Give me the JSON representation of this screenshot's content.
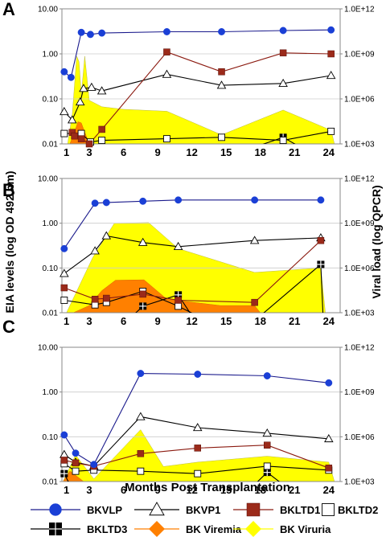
{
  "chart_data": [
    {
      "panel_label": "A",
      "type": "line",
      "x_tick_labels": [
        "1",
        "3",
        "6",
        "9",
        "12",
        "15",
        "18",
        "21",
        "24"
      ],
      "x_tick_values": [
        1,
        3,
        6,
        9,
        12,
        15,
        18,
        21,
        24
      ],
      "y_left": {
        "scale": "log",
        "range": [
          0.01,
          10
        ],
        "ticks": [
          "0.01",
          "0.10",
          "1.00",
          "10.00"
        ]
      },
      "y_right": {
        "scale": "log",
        "range": [
          1000,
          1000000000000
        ],
        "ticks": [
          "1.0E+03",
          "1.0E+06",
          "1.0E+09",
          "1.0E+12"
        ]
      },
      "grid": true,
      "series": [
        {
          "name": "BKVLP",
          "type": "line",
          "points": [
            [
              0.8,
              0.4
            ],
            [
              1.4,
              0.3
            ],
            [
              2.3,
              3.0
            ],
            [
              3.1,
              2.7
            ],
            [
              4.1,
              2.9
            ],
            [
              9.8,
              3.1
            ],
            [
              14.6,
              3.1
            ],
            [
              20.0,
              3.3
            ],
            [
              24.2,
              3.4
            ]
          ]
        },
        {
          "name": "BKVP1",
          "type": "line",
          "points": [
            [
              0.8,
              0.052
            ],
            [
              1.5,
              0.034
            ],
            [
              2.2,
              0.085
            ],
            [
              2.5,
              0.17
            ],
            [
              3.2,
              0.18
            ],
            [
              4.1,
              0.15
            ],
            [
              9.8,
              0.35
            ],
            [
              14.6,
              0.2
            ],
            [
              20.0,
              0.22
            ],
            [
              24.2,
              0.33
            ]
          ]
        },
        {
          "name": "BKLTD1",
          "type": "line",
          "points": [
            [
              1.5,
              0.018
            ],
            [
              1.7,
              0.015
            ],
            [
              2.3,
              0.013
            ],
            [
              3.0,
              0.01
            ],
            [
              4.1,
              0.021
            ],
            [
              9.8,
              1.1
            ],
            [
              14.6,
              0.4
            ],
            [
              20.0,
              1.05
            ],
            [
              24.2,
              1.0
            ]
          ]
        },
        {
          "name": "BKLTD2",
          "type": "line",
          "points": [
            [
              0.8,
              0.017
            ],
            [
              2.3,
              0.017
            ],
            [
              3.1,
              0.011
            ],
            [
              4.1,
              0.012
            ],
            [
              9.8,
              0.013
            ],
            [
              14.6,
              0.014
            ],
            [
              20.0,
              0.012
            ],
            [
              24.2,
              0.019
            ]
          ]
        },
        {
          "name": "BKLTD3",
          "type": "line",
          "points": [
            [
              17.5,
              0.0085
            ],
            [
              20.0,
              0.014
            ],
            [
              21.5,
              0.0085
            ]
          ]
        },
        {
          "name": "BK Viremia",
          "type": "area",
          "axis": "right",
          "points": [
            [
              1.3,
              1000
            ],
            [
              1.8,
              10000
            ],
            [
              2.0,
              30000
            ],
            [
              2.3,
              25000
            ],
            [
              2.6,
              6000
            ],
            [
              3.0,
              1000
            ]
          ]
        },
        {
          "name": "BK Viruria",
          "type": "area",
          "axis": "right",
          "points": [
            [
              1.1,
              1000
            ],
            [
              1.5,
              80000
            ],
            [
              1.9,
              700000000
            ],
            [
              2.1,
              300000000
            ],
            [
              2.3,
              2000000
            ],
            [
              2.6,
              700000000
            ],
            [
              3.0,
              800000
            ],
            [
              4.1,
              300000
            ],
            [
              6.0,
              200000
            ],
            [
              9.8,
              150000
            ],
            [
              14.6,
              4000
            ],
            [
              20.0,
              180000
            ],
            [
              24.2,
              8000
            ],
            [
              24.5,
              1000
            ]
          ]
        }
      ]
    },
    {
      "panel_label": "B",
      "type": "line",
      "x_tick_labels": [
        "1",
        "3",
        "6",
        "9",
        "12",
        "15",
        "18",
        "21",
        "24"
      ],
      "x_tick_values": [
        1,
        3,
        6,
        9,
        12,
        15,
        18,
        21,
        24
      ],
      "y_left": {
        "scale": "log",
        "range": [
          0.01,
          10
        ],
        "ticks": [
          "0.01",
          "0.10",
          "1.00",
          "10.00"
        ]
      },
      "y_right": {
        "scale": "log",
        "range": [
          1000,
          1000000000000
        ],
        "ticks": [
          "1.0E+03",
          "1.0E+06",
          "1.0E+09",
          "1.0E+12"
        ]
      },
      "grid": true,
      "series": [
        {
          "name": "BKVLP",
          "type": "line",
          "points": [
            [
              0.8,
              0.27
            ],
            [
              3.5,
              2.8
            ],
            [
              4.5,
              2.9
            ],
            [
              7.7,
              3.1
            ],
            [
              10.8,
              3.3
            ],
            [
              17.5,
              3.3
            ],
            [
              23.3,
              3.3
            ]
          ]
        },
        {
          "name": "BKVP1",
          "type": "line",
          "points": [
            [
              0.8,
              0.075
            ],
            [
              3.5,
              0.24
            ],
            [
              4.5,
              0.52
            ],
            [
              7.7,
              0.37
            ],
            [
              10.8,
              0.3
            ],
            [
              17.5,
              0.41
            ],
            [
              23.3,
              0.47
            ]
          ]
        },
        {
          "name": "BKLTD1",
          "type": "line",
          "points": [
            [
              0.8,
              0.036
            ],
            [
              3.5,
              0.02
            ],
            [
              4.5,
              0.021
            ],
            [
              7.7,
              0.026
            ],
            [
              10.8,
              0.019
            ],
            [
              17.5,
              0.017
            ],
            [
              23.3,
              0.41
            ]
          ]
        },
        {
          "name": "BKLTD2",
          "type": "line",
          "points": [
            [
              0.8,
              0.019
            ],
            [
              3.5,
              0.015
            ],
            [
              4.5,
              0.017
            ],
            [
              7.7,
              0.03
            ],
            [
              10.8,
              0.014
            ],
            [
              12.5,
              0.0085
            ]
          ]
        },
        {
          "name": "BKLTD3",
          "type": "line",
          "points": [
            [
              6.8,
              0.0085
            ],
            [
              7.7,
              0.014
            ],
            [
              10.8,
              0.025
            ],
            [
              12.0,
              0.0085
            ],
            [
              18.0,
              0.0085
            ],
            [
              23.3,
              0.12
            ],
            [
              23.5,
              0.0085
            ]
          ]
        },
        {
          "name": "BK Viremia",
          "type": "area",
          "axis": "right",
          "points": [
            [
              1.6,
              1000
            ],
            [
              3.0,
              3000
            ],
            [
              4.1,
              30000
            ],
            [
              5.3,
              150000
            ],
            [
              7.8,
              160000
            ],
            [
              9.8,
              8000
            ],
            [
              14.5,
              3000
            ],
            [
              17.5,
              3000
            ],
            [
              18.0,
              1000
            ]
          ]
        },
        {
          "name": "BK Viruria",
          "type": "area",
          "axis": "right",
          "points": [
            [
              1.0,
              1000
            ],
            [
              3.3,
              5000000
            ],
            [
              5.2,
              1000000000
            ],
            [
              8.2,
              1100000000
            ],
            [
              10.8,
              20000000
            ],
            [
              17.5,
              500000
            ],
            [
              23.3,
              1000000
            ],
            [
              23.7,
              1000
            ]
          ]
        }
      ]
    },
    {
      "panel_label": "C",
      "type": "line",
      "x_tick_labels": [
        "1",
        "3",
        "6",
        "9",
        "12",
        "15",
        "18",
        "21",
        "24"
      ],
      "x_tick_values": [
        1,
        3,
        6,
        9,
        12,
        15,
        18,
        21,
        24
      ],
      "y_left": {
        "scale": "log",
        "range": [
          0.01,
          10
        ],
        "ticks": [
          "0.01",
          "0.10",
          "1.00",
          "10.00"
        ]
      },
      "y_right": {
        "scale": "log",
        "range": [
          1000,
          1000000000000
        ],
        "ticks": [
          "1.0E+03",
          "1.0E+06",
          "1.0E+09",
          "1.0E+12"
        ]
      },
      "grid": true,
      "series": [
        {
          "name": "BKVLP",
          "type": "line",
          "points": [
            [
              0.8,
              0.11
            ],
            [
              1.8,
              0.043
            ],
            [
              3.4,
              0.024
            ],
            [
              7.5,
              2.6
            ],
            [
              12.5,
              2.5
            ],
            [
              18.6,
              2.3
            ],
            [
              24.0,
              1.6
            ]
          ]
        },
        {
          "name": "BKVP1",
          "type": "line",
          "points": [
            [
              0.8,
              0.04
            ],
            [
              1.8,
              0.027
            ],
            [
              3.4,
              0.022
            ],
            [
              7.5,
              0.28
            ],
            [
              12.5,
              0.16
            ],
            [
              18.6,
              0.12
            ],
            [
              24.0,
              0.09
            ]
          ]
        },
        {
          "name": "BKLTD1",
          "type": "line",
          "points": [
            [
              0.8,
              0.03
            ],
            [
              1.8,
              0.026
            ],
            [
              3.4,
              0.022
            ],
            [
              7.5,
              0.042
            ],
            [
              12.5,
              0.056
            ],
            [
              18.6,
              0.065
            ],
            [
              24.0,
              0.02
            ]
          ]
        },
        {
          "name": "BKLTD2",
          "type": "line",
          "points": [
            [
              0.8,
              0.025
            ],
            [
              1.8,
              0.017
            ],
            [
              3.4,
              0.018
            ],
            [
              7.5,
              0.017
            ],
            [
              12.5,
              0.015
            ],
            [
              18.6,
              0.022
            ],
            [
              24.0,
              0.018
            ]
          ]
        },
        {
          "name": "BKLTD3",
          "type": "line",
          "points": [
            [
              0.8,
              0.015
            ],
            [
              1.3,
              0.0085
            ],
            [
              17.5,
              0.0085
            ],
            [
              18.6,
              0.016
            ],
            [
              20.0,
              0.0085
            ]
          ]
        },
        {
          "name": "BK Viremia",
          "type": "area",
          "axis": "right",
          "points": [
            [
              0.7,
              1000
            ],
            [
              1.3,
              5000
            ],
            [
              2.0,
              2000
            ],
            [
              2.5,
              1000
            ]
          ]
        },
        {
          "name": "BK Viruria",
          "type": "area",
          "axis": "right",
          "points": [
            [
              0.7,
              1000
            ],
            [
              1.8,
              60000
            ],
            [
              3.4,
              1500
            ],
            [
              7.5,
              3000000
            ],
            [
              9.5,
              10000
            ],
            [
              12.5,
              20000
            ],
            [
              18.6,
              50000
            ],
            [
              24.0,
              20000
            ],
            [
              24.5,
              1000
            ]
          ]
        }
      ]
    }
  ],
  "figure": {
    "y_left_title": "EIA levels (log OD 492 nm)",
    "y_right_title": "Viral load (log QPCR)",
    "x_title": "Months Post Transplantation"
  },
  "legend": {
    "items": [
      {
        "key": "bkvlp",
        "label": "BKVLP",
        "marker": "circle",
        "line_color": "#1a1a8c",
        "marker_color": "#1a3fd6"
      },
      {
        "key": "bkvp1",
        "label": "BKVP1",
        "marker": "triangle-open",
        "line_color": "#000000",
        "marker_color": "#ffffff"
      },
      {
        "key": "bkltd1",
        "label": "BKLTD1",
        "marker": "square",
        "line_color": "#8b1a10",
        "marker_color": "#9b2a1a"
      },
      {
        "key": "bkltd2",
        "label": "BKLTD2",
        "marker": "square-open",
        "line_color": "#000000",
        "marker_color": "#ffffff"
      },
      {
        "key": "bkltd3",
        "label": "BKLTD3",
        "marker": "square-cross",
        "line_color": "#000000",
        "marker_color": "#000000"
      },
      {
        "key": "viremia",
        "label": "BK Viremia",
        "marker": "diamond",
        "line_color": "#ff7f00",
        "marker_color": "#ff8000"
      },
      {
        "key": "viruria",
        "label": "BK Viruria",
        "marker": "diamond",
        "line_color": "#ffff00",
        "marker_color": "#ffff00"
      }
    ]
  },
  "colors": {
    "BKVLP_line": "#1a1a8c",
    "BKVLP_marker": "#1a3fd6",
    "BKVP1": "#000000",
    "BKLTD1_line": "#8b1a10",
    "BKLTD1_marker": "#9b2a1a",
    "BKLTD2": "#000000",
    "BKLTD3": "#000000",
    "viremia": "#ff8000",
    "viruria": "#ffff00",
    "grid": "#cccccc",
    "axis": "#888888"
  }
}
